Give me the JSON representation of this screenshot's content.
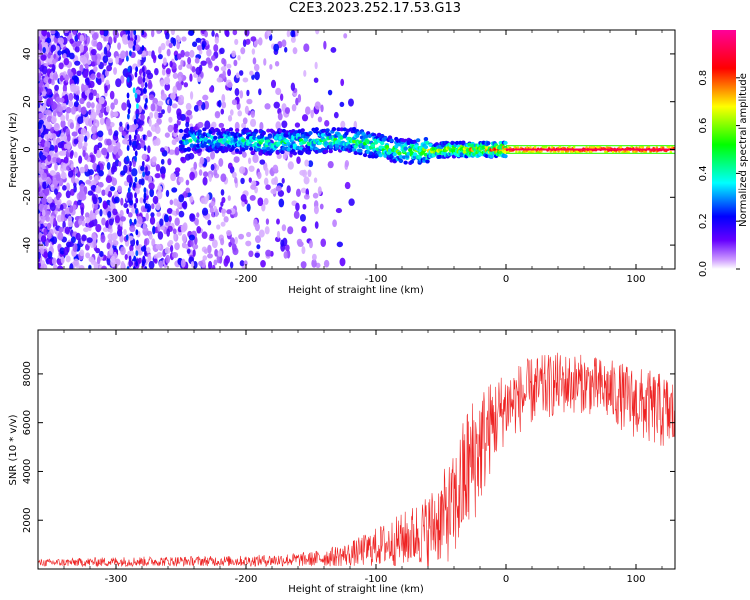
{
  "title": "C2E3.2023.252.17.53.G13",
  "chart_data": [
    {
      "type": "heatmap",
      "xlabel": "Height of straight line (km)",
      "ylabel": "Frequency (Hz)",
      "xlim": [
        -360,
        130
      ],
      "ylim": [
        -50,
        50
      ],
      "x_ticks": [
        -300,
        -200,
        -100,
        0,
        100
      ],
      "x_tick_labels": [
        "-300",
        "-200",
        "-100",
        "0",
        "100"
      ],
      "y_ticks": [
        -40,
        -20,
        0,
        20,
        40
      ],
      "y_tick_labels": [
        "-40",
        "-20",
        "0",
        "20",
        "40"
      ],
      "colorbar": {
        "label": "Normalized spectral amplitude",
        "range": [
          0,
          1
        ],
        "ticks": [
          0,
          0.2,
          0.4,
          0.6,
          0.8
        ],
        "tick_labels": [
          "0.0",
          "0.2",
          "0.4",
          "0.6",
          "0.8"
        ],
        "colormap": [
          "#ffffff",
          "#6600ff",
          "#0000ff",
          "#00ffff",
          "#00ff00",
          "#ffff00",
          "#ff0000",
          "#ff0099"
        ]
      },
      "ridge": {
        "description_points": [
          {
            "x": -240,
            "y": 4,
            "amp": 0.45
          },
          {
            "x": -180,
            "y": 3,
            "amp": 0.5
          },
          {
            "x": -120,
            "y": 4,
            "amp": 0.55
          },
          {
            "x": -80,
            "y": -1,
            "amp": 0.6
          },
          {
            "x": -40,
            "y": 0,
            "amp": 0.75
          },
          {
            "x": 0,
            "y": 0,
            "amp": 0.9
          },
          {
            "x": 130,
            "y": 0,
            "amp": 0.95
          }
        ]
      },
      "grid": false
    },
    {
      "type": "line",
      "xlabel": "Height of straight line (km)",
      "ylabel": "SNR (10 * v/v)",
      "xlim": [
        -360,
        130
      ],
      "ylim": [
        0,
        9800
      ],
      "x_ticks": [
        -300,
        -200,
        -100,
        0,
        100
      ],
      "x_tick_labels": [
        "-300",
        "-200",
        "-100",
        "0",
        "100"
      ],
      "y_ticks": [
        2000,
        4000,
        6000,
        8000
      ],
      "y_tick_labels": [
        "2000",
        "4000",
        "6000",
        "8000"
      ],
      "color": "#ee2222",
      "envelope": {
        "x": [
          -360,
          -300,
          -250,
          -200,
          -150,
          -120,
          -100,
          -80,
          -60,
          -40,
          -30,
          -20,
          -10,
          0,
          20,
          40,
          60,
          80,
          100,
          130
        ],
        "mean": [
          250,
          300,
          320,
          330,
          400,
          600,
          900,
          1200,
          1600,
          2500,
          4000,
          5000,
          6000,
          6700,
          7300,
          7600,
          7600,
          7300,
          6800,
          6300
        ],
        "amp": [
          150,
          200,
          200,
          220,
          300,
          500,
          800,
          1100,
          1500,
          2200,
          2800,
          2500,
          1800,
          1500,
          1400,
          1300,
          1200,
          1300,
          1500,
          1600
        ]
      },
      "grid": false
    }
  ]
}
